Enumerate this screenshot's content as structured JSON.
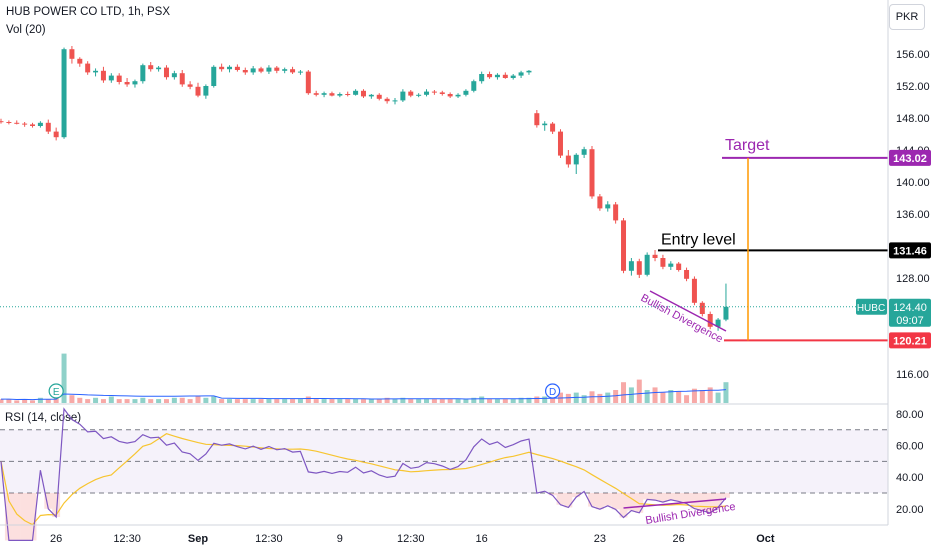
{
  "header": {
    "title": "HUB POWER CO LTD, 1h, PSX",
    "volume_label": "Vol (20)",
    "currency": "PKR"
  },
  "rsi_panel": {
    "label": "RSI (14, close)",
    "ticks": [
      "80.00",
      "60.00",
      "40.00",
      "20.00"
    ],
    "tick_values": [
      80,
      60,
      40,
      20
    ],
    "bands": [
      70,
      50,
      30
    ]
  },
  "annotations": {
    "target_label": "Target",
    "entry_label": "Entry level",
    "divergence_price": "Bullish Divergence",
    "divergence_rsi": "Bullish Divergence",
    "earnings_marker": "E",
    "dividend_marker": "D"
  },
  "price_markers": {
    "target": "143.02",
    "entry": "131.46",
    "stop": "120.21",
    "symbol": "HUBC",
    "last": "124.40",
    "countdown": "09:07"
  },
  "colors": {
    "up": "#26a69a",
    "down": "#ef5350",
    "vol_up": "#8fd1c9",
    "vol_down": "#f7a9a7",
    "target": "#9c27b0",
    "entry": "#000000",
    "stop": "#f23645",
    "rsi_line": "#7e57c2",
    "rsi_ma": "#f7c530",
    "vol_ma": "#2962ff",
    "projection": "#ff9800"
  },
  "chart_data": {
    "type": "candlestick",
    "title": "HUB POWER CO LTD, 1h, PSX",
    "price_axis": {
      "ticks": [
        "156.00",
        "152.00",
        "148.00",
        "144.00",
        "140.00",
        "136.00",
        "132.00",
        "128.00",
        "116.00"
      ],
      "tick_values": [
        156,
        152,
        148,
        144,
        140,
        136,
        132,
        128,
        116
      ],
      "range": [
        114,
        158
      ]
    },
    "x_axis": {
      "ticks": [
        "26",
        "12:30",
        "Sep",
        "12:30",
        "9",
        "12:30",
        "16",
        "23",
        "26",
        "Oct"
      ],
      "tick_bars": [
        7,
        16,
        25,
        34,
        43,
        52,
        61,
        76,
        86,
        97
      ]
    },
    "levels": {
      "target": 143.02,
      "entry": 131.46,
      "stop": 120.21,
      "last": 124.4
    },
    "candles": [
      [
        147.6,
        147.9,
        147.3,
        147.5
      ],
      [
        147.5,
        147.7,
        147.2,
        147.4
      ],
      [
        147.4,
        147.7,
        147.2,
        147.3
      ],
      [
        147.3,
        147.5,
        146.9,
        147.2
      ],
      [
        147.2,
        147.4,
        146.8,
        147.0
      ],
      [
        147.0,
        147.6,
        146.8,
        147.4
      ],
      [
        147.4,
        147.8,
        146.0,
        146.3
      ],
      [
        146.3,
        146.8,
        145.2,
        145.6
      ],
      [
        145.6,
        156.8,
        145.4,
        156.6
      ],
      [
        156.6,
        157.0,
        154.8,
        155.4
      ],
      [
        155.4,
        155.6,
        154.4,
        154.8
      ],
      [
        154.8,
        155.1,
        153.4,
        153.7
      ],
      [
        153.7,
        154.2,
        153.2,
        153.9
      ],
      [
        153.9,
        154.4,
        152.4,
        152.7
      ],
      [
        152.7,
        153.6,
        152.4,
        153.3
      ],
      [
        153.3,
        153.6,
        152.2,
        152.5
      ],
      [
        152.5,
        153.0,
        151.9,
        152.2
      ],
      [
        152.2,
        152.8,
        151.8,
        152.6
      ],
      [
        152.6,
        154.8,
        152.3,
        154.6
      ],
      [
        154.6,
        155.0,
        153.8,
        154.1
      ],
      [
        154.1,
        154.5,
        153.8,
        154.3
      ],
      [
        154.3,
        154.6,
        152.8,
        153.1
      ],
      [
        153.1,
        153.9,
        152.8,
        153.6
      ],
      [
        153.6,
        154.0,
        151.9,
        152.2
      ],
      [
        152.2,
        152.6,
        151.6,
        151.9
      ],
      [
        151.9,
        152.4,
        150.6,
        150.8
      ],
      [
        150.8,
        152.2,
        150.4,
        152.0
      ],
      [
        152.0,
        154.6,
        151.8,
        154.4
      ],
      [
        154.4,
        154.8,
        153.8,
        154.1
      ],
      [
        154.1,
        154.6,
        153.7,
        154.4
      ],
      [
        154.4,
        154.7,
        153.8,
        154.0
      ],
      [
        154.0,
        154.3,
        153.4,
        153.7
      ],
      [
        153.7,
        154.5,
        153.4,
        154.2
      ],
      [
        154.2,
        154.4,
        153.6,
        153.8
      ],
      [
        153.8,
        154.6,
        153.5,
        154.3
      ],
      [
        154.3,
        154.5,
        153.6,
        153.9
      ],
      [
        153.9,
        154.3,
        153.6,
        154.1
      ],
      [
        154.1,
        154.4,
        153.5,
        153.7
      ],
      [
        153.7,
        154.0,
        153.4,
        153.8
      ],
      [
        153.8,
        154.0,
        150.9,
        151.1
      ],
      [
        151.1,
        151.4,
        150.7,
        150.9
      ],
      [
        150.9,
        151.3,
        150.6,
        151.1
      ],
      [
        151.1,
        151.3,
        150.7,
        150.8
      ],
      [
        150.8,
        151.2,
        150.6,
        151.0
      ],
      [
        151.0,
        151.3,
        150.7,
        150.9
      ],
      [
        150.9,
        151.6,
        150.8,
        151.4
      ],
      [
        151.4,
        151.6,
        150.5,
        150.7
      ],
      [
        150.7,
        151.0,
        150.4,
        150.9
      ],
      [
        150.9,
        151.1,
        150.2,
        150.4
      ],
      [
        150.4,
        150.6,
        149.8,
        150.1
      ],
      [
        150.1,
        150.5,
        149.7,
        150.2
      ],
      [
        150.2,
        151.6,
        150.0,
        151.3
      ],
      [
        151.3,
        151.5,
        150.6,
        150.8
      ],
      [
        150.8,
        151.1,
        150.6,
        150.9
      ],
      [
        150.9,
        151.6,
        150.7,
        151.3
      ],
      [
        151.3,
        151.5,
        150.9,
        151.2
      ],
      [
        151.2,
        151.4,
        150.8,
        151.0
      ],
      [
        151.0,
        151.2,
        150.5,
        150.7
      ],
      [
        150.7,
        151.1,
        150.5,
        150.9
      ],
      [
        150.9,
        151.6,
        150.7,
        151.4
      ],
      [
        151.4,
        152.8,
        151.2,
        152.6
      ],
      [
        152.6,
        153.8,
        152.3,
        153.5
      ],
      [
        153.5,
        153.8,
        152.9,
        153.1
      ],
      [
        153.1,
        153.6,
        152.8,
        153.4
      ],
      [
        153.4,
        153.7,
        152.9,
        153.0
      ],
      [
        153.0,
        153.5,
        152.8,
        153.3
      ],
      [
        153.3,
        153.9,
        153.0,
        153.7
      ],
      [
        153.7,
        154.0,
        153.4,
        153.9
      ],
      [
        148.6,
        149.0,
        146.8,
        147.1
      ],
      [
        147.1,
        147.6,
        146.4,
        147.3
      ],
      [
        147.3,
        147.5,
        146.0,
        146.3
      ],
      [
        146.3,
        146.6,
        143.0,
        143.3
      ],
      [
        143.3,
        144.0,
        141.8,
        142.2
      ],
      [
        142.2,
        143.6,
        141.0,
        143.4
      ],
      [
        143.4,
        144.4,
        143.0,
        144.1
      ],
      [
        144.1,
        144.5,
        137.9,
        138.2
      ],
      [
        138.2,
        138.5,
        136.4,
        136.7
      ],
      [
        136.7,
        137.6,
        136.3,
        137.2
      ],
      [
        137.2,
        137.5,
        134.8,
        135.2
      ],
      [
        135.2,
        135.5,
        128.6,
        128.9
      ],
      [
        128.9,
        130.5,
        128.3,
        130.1
      ],
      [
        130.1,
        130.4,
        128.0,
        128.4
      ],
      [
        128.4,
        131.2,
        128.2,
        130.9
      ],
      [
        130.9,
        131.5,
        130.1,
        130.5
      ],
      [
        130.5,
        130.9,
        129.1,
        129.4
      ],
      [
        129.4,
        130.1,
        129.0,
        129.8
      ],
      [
        129.8,
        130.0,
        128.8,
        129.0
      ],
      [
        129.0,
        129.3,
        127.6,
        127.9
      ],
      [
        127.9,
        128.2,
        124.6,
        124.9
      ],
      [
        124.9,
        125.1,
        123.2,
        123.5
      ],
      [
        123.5,
        123.8,
        121.6,
        121.9
      ],
      [
        121.9,
        123.0,
        121.4,
        122.8
      ],
      [
        122.8,
        127.3,
        122.6,
        124.4
      ]
    ],
    "volume_ma": "Vol (20)",
    "rsi": "RSI (14, close)"
  }
}
